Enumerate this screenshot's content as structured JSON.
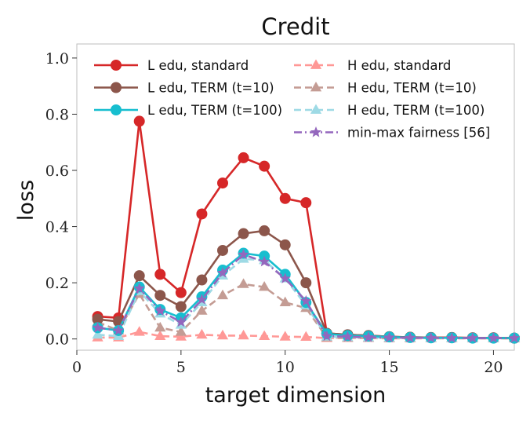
{
  "chart_data": {
    "type": "line",
    "title": "Credit",
    "xlabel": "target dimension",
    "ylabel": "loss",
    "xlim": [
      0,
      21
    ],
    "ylim": [
      -0.04,
      1.05
    ],
    "xticks": [
      0,
      5,
      10,
      15,
      20
    ],
    "yticks": [
      0.0,
      0.2,
      0.4,
      0.6,
      0.8,
      1.0
    ],
    "xtick_labels": [
      "0",
      "5",
      "10",
      "15",
      "20"
    ],
    "ytick_labels": [
      "0.0",
      "0.2",
      "0.4",
      "0.6",
      "0.8",
      "1.0"
    ],
    "grid": false,
    "legend_placement": "top",
    "x": [
      1,
      2,
      3,
      4,
      5,
      6,
      7,
      8,
      9,
      10,
      11,
      12,
      13,
      14,
      15,
      16,
      17,
      18,
      19,
      20,
      21
    ],
    "series": [
      {
        "name": "L edu, standard",
        "color": "#d62728",
        "linestyle": "solid",
        "marker": "circle",
        "values": [
          0.08,
          0.075,
          0.775,
          0.23,
          0.165,
          0.445,
          0.555,
          0.645,
          0.615,
          0.5,
          0.485,
          0.02,
          0.015,
          0.012,
          0.008,
          0.006,
          0.005,
          0.005,
          0.004,
          0.004,
          0.003
        ]
      },
      {
        "name": "L edu, TERM (t=10)",
        "color": "#8c564b",
        "linestyle": "solid",
        "marker": "circle",
        "values": [
          0.07,
          0.062,
          0.225,
          0.155,
          0.115,
          0.21,
          0.315,
          0.375,
          0.385,
          0.335,
          0.2,
          0.02,
          0.015,
          0.012,
          0.008,
          0.006,
          0.005,
          0.005,
          0.004,
          0.004,
          0.003
        ]
      },
      {
        "name": "L edu, TERM (t=100)",
        "color": "#17becf",
        "linestyle": "solid",
        "marker": "circle",
        "values": [
          0.04,
          0.03,
          0.185,
          0.105,
          0.075,
          0.15,
          0.245,
          0.305,
          0.295,
          0.23,
          0.13,
          0.018,
          0.012,
          0.01,
          0.007,
          0.005,
          0.004,
          0.004,
          0.003,
          0.003,
          0.003
        ]
      },
      {
        "name": "H edu, standard",
        "color": "#ff9896",
        "linestyle": "dashed",
        "marker": "triangle",
        "values": [
          0.005,
          0.005,
          0.025,
          0.01,
          0.008,
          0.015,
          0.012,
          0.012,
          0.01,
          0.008,
          0.007,
          0.003,
          0.003,
          0.003,
          0.002,
          0.002,
          0.002,
          0.002,
          0.002,
          0.002,
          0.002
        ]
      },
      {
        "name": "H edu, TERM (t=10)",
        "color": "#c49c94",
        "linestyle": "dashed",
        "marker": "triangle",
        "values": [
          0.06,
          0.03,
          0.16,
          0.04,
          0.025,
          0.1,
          0.155,
          0.195,
          0.185,
          0.13,
          0.11,
          0.005,
          0.004,
          0.004,
          0.003,
          0.003,
          0.003,
          0.003,
          0.002,
          0.002,
          0.002
        ]
      },
      {
        "name": "H edu, TERM (t=100)",
        "color": "#9edae5",
        "linestyle": "dashed",
        "marker": "triangle",
        "values": [
          0.015,
          0.01,
          0.17,
          0.09,
          0.05,
          0.13,
          0.225,
          0.285,
          0.28,
          0.215,
          0.12,
          0.008,
          0.006,
          0.005,
          0.004,
          0.004,
          0.003,
          0.003,
          0.003,
          0.003,
          0.003
        ]
      },
      {
        "name": "min-max fairness [56]",
        "color": "#9467bd",
        "linestyle": "dashdot",
        "marker": "star",
        "values": [
          0.04,
          0.03,
          0.18,
          0.1,
          0.06,
          0.14,
          0.235,
          0.3,
          0.275,
          0.215,
          0.135,
          0.01,
          0.008,
          0.006,
          0.005,
          0.004,
          0.004,
          0.003,
          0.003,
          0.003,
          0.003
        ]
      }
    ]
  }
}
